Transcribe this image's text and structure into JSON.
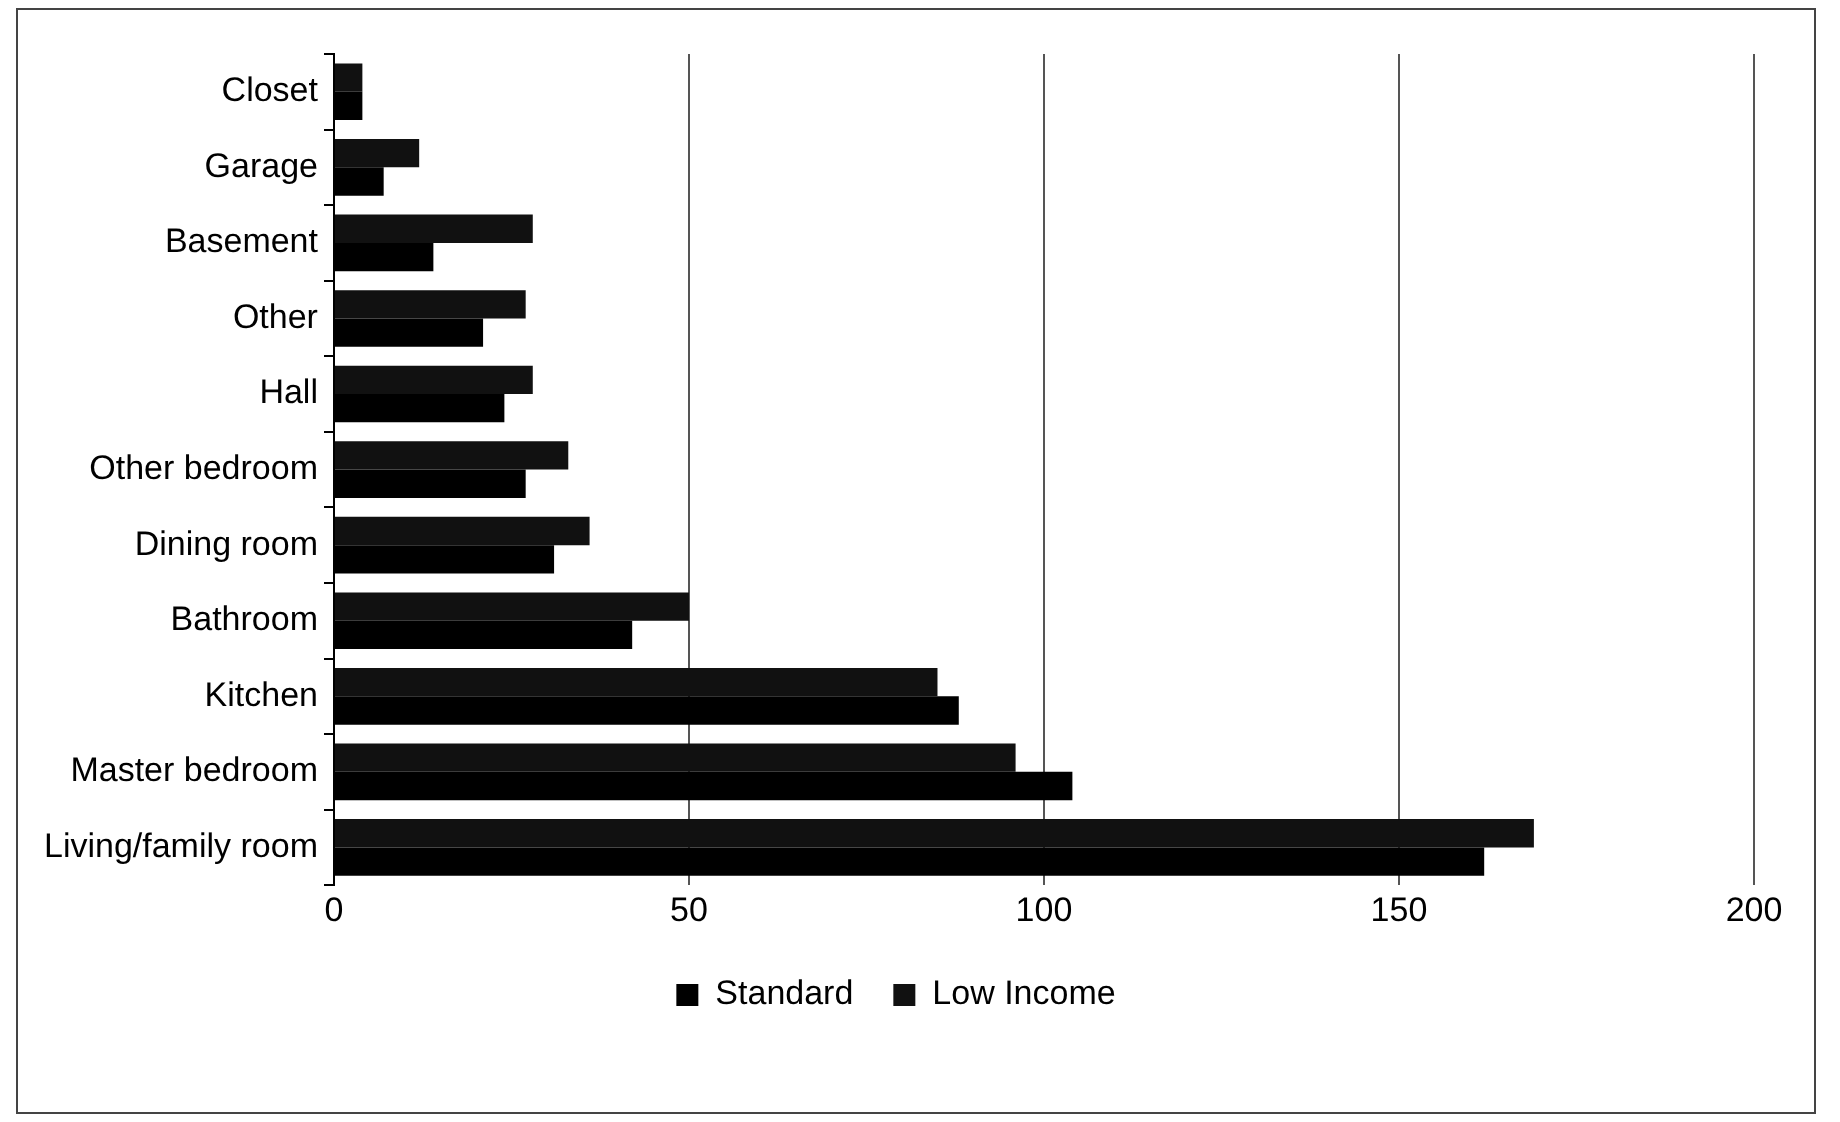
{
  "chart_data": {
    "type": "bar",
    "orientation": "horizontal",
    "categories": [
      "Closet",
      "Garage",
      "Basement",
      "Other",
      "Hall",
      "Other bedroom",
      "Dining room",
      "Bathroom",
      "Kitchen",
      "Master bedroom",
      "Living/family room"
    ],
    "series": [
      {
        "name": "Standard",
        "color": "#000000",
        "values": [
          4,
          7,
          14,
          21,
          24,
          27,
          31,
          42,
          88,
          104,
          162
        ]
      },
      {
        "name": "Low Income",
        "color": "#111111",
        "values": [
          4,
          12,
          28,
          27,
          28,
          33,
          36,
          50,
          85,
          96,
          169
        ]
      }
    ],
    "xlim": [
      0,
      200
    ],
    "xticks": [
      0,
      50,
      100,
      150,
      200
    ],
    "grid": "x",
    "legend": "bottom"
  }
}
